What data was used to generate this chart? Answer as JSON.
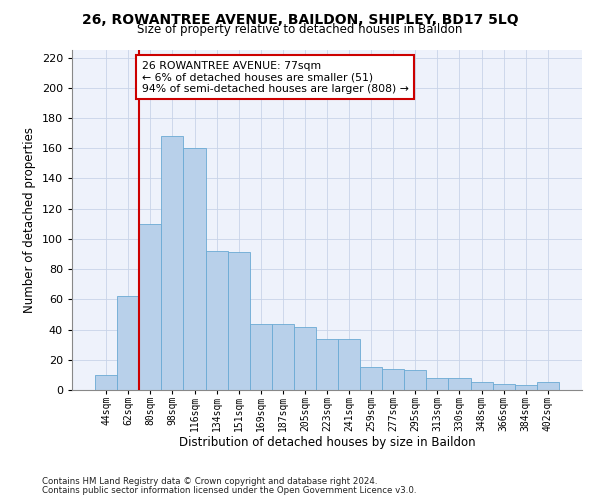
{
  "title1": "26, ROWANTREE AVENUE, BAILDON, SHIPLEY, BD17 5LQ",
  "title2": "Size of property relative to detached houses in Baildon",
  "xlabel": "Distribution of detached houses by size in Baildon",
  "ylabel": "Number of detached properties",
  "categories": [
    "44sqm",
    "62sqm",
    "80sqm",
    "98sqm",
    "116sqm",
    "134sqm",
    "151sqm",
    "169sqm",
    "187sqm",
    "205sqm",
    "223sqm",
    "241sqm",
    "259sqm",
    "277sqm",
    "295sqm",
    "313sqm",
    "330sqm",
    "348sqm",
    "366sqm",
    "384sqm",
    "402sqm"
  ],
  "values": [
    10,
    62,
    110,
    168,
    160,
    92,
    91,
    44,
    44,
    42,
    34,
    34,
    15,
    14,
    13,
    8,
    8,
    5,
    4,
    3,
    5
  ],
  "bar_color": "#b8d0ea",
  "bar_edgecolor": "#6aaad4",
  "grid_color": "#c8d4e8",
  "annotation_text": "26 ROWANTREE AVENUE: 77sqm\n← 6% of detached houses are smaller (51)\n94% of semi-detached houses are larger (808) →",
  "annotation_box_facecolor": "#ffffff",
  "annotation_box_edgecolor": "#cc0000",
  "red_line_color": "#cc0000",
  "footnote1": "Contains HM Land Registry data © Crown copyright and database right 2024.",
  "footnote2": "Contains public sector information licensed under the Open Government Licence v3.0.",
  "bg_color": "#ffffff",
  "ax_bg_color": "#eef2fb",
  "ylim": [
    0,
    225
  ],
  "yticks": [
    0,
    20,
    40,
    60,
    80,
    100,
    120,
    140,
    160,
    180,
    200,
    220
  ]
}
